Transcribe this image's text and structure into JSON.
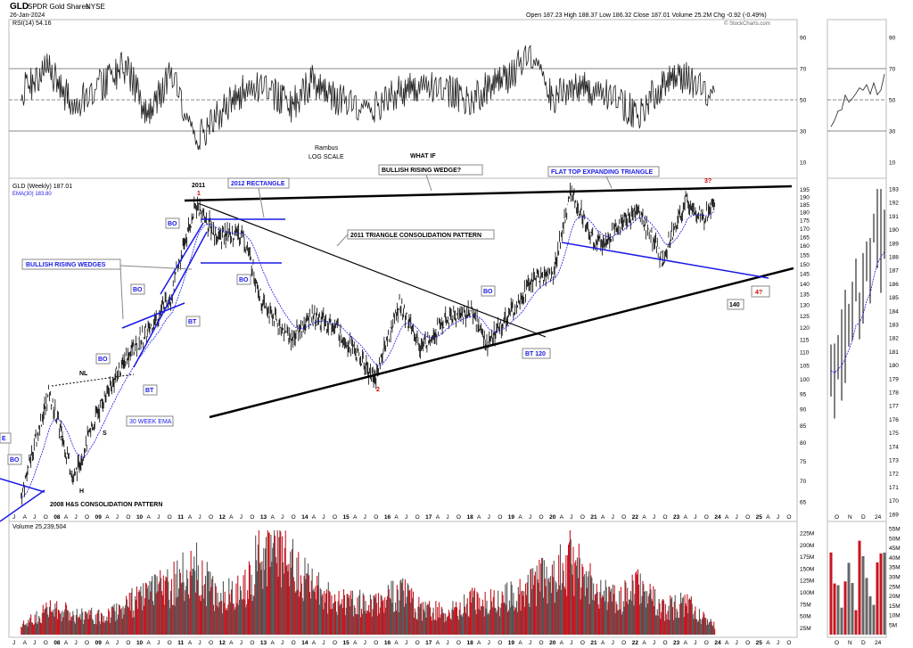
{
  "header": {
    "ticker": "GLD",
    "name": "SPDR Gold Shares",
    "exchange": "NYSE",
    "date": "26-Jan-2024",
    "ohlc": "Open 187.23  High 188.37  Low 186.32  Close 187.01  Volume 25.2M  Chg -0.92 (-0.49%)",
    "copyright": "© StockCharts.com"
  },
  "rsi": {
    "label": "RSI(14) 54.16",
    "ticks": [
      "90",
      "70",
      "50",
      "30",
      "10"
    ]
  },
  "price": {
    "label": "GLD (Weekly) 187.01",
    "ema_label": "EMA(30) 183.80",
    "ticks": [
      "195",
      "190",
      "185",
      "180",
      "175",
      "170",
      "165",
      "160",
      "155",
      "150",
      "145",
      "140",
      "135",
      "130",
      "125",
      "120",
      "115",
      "110",
      "105",
      "100",
      "95",
      "90",
      "85",
      "80",
      "75",
      "70",
      "65"
    ],
    "right_ticks": [
      "193",
      "192",
      "191",
      "190",
      "189",
      "188",
      "187",
      "186",
      "185",
      "184",
      "183",
      "182",
      "181",
      "180",
      "179",
      "178",
      "177",
      "176",
      "175",
      "174",
      "173",
      "172",
      "171",
      "170",
      "169"
    ]
  },
  "volume": {
    "label": "Volume 25,239,504",
    "ticks": [
      "225M",
      "200M",
      "175M",
      "150M",
      "125M",
      "100M",
      "75M",
      "50M",
      "25M"
    ],
    "right_ticks": [
      "55M",
      "50M",
      "45M",
      "40M",
      "35M",
      "30M",
      "25M",
      "20M",
      "15M",
      "10M",
      "5M"
    ]
  },
  "annotations": {
    "rambus": "Rambus",
    "log_scale": "LOG SCALE",
    "what_if": "WHAT IF",
    "bullish_rising_wedge": "BULLISH RISING WEDGE?",
    "flat_top": "FLAT TOP EXPANDING TRIANGLE",
    "rect2012": "2012 RECTANGLE",
    "triangle2011": "2011 TRIANGLE CONSOLIDATION PATTERN",
    "bullish_wedges": "BULLISH RISING WEDGES",
    "hs2008": "2008 H&S CONSOLIDATION PATTERN",
    "ema30": "30 WEEK EMA",
    "year2011": "2011",
    "p1": "1",
    "p2": "2",
    "p3": "3?",
    "p4": "4?",
    "target": "140",
    "bt120": "BT 120",
    "bo": "BO",
    "bt": "BT",
    "nl": "NL",
    "s": "S",
    "h": "H",
    "e": "E"
  },
  "x_axis": {
    "main": [
      "J",
      "A",
      "J",
      "O",
      "08",
      "A",
      "J",
      "O",
      "09",
      "A",
      "J",
      "O",
      "10",
      "A",
      "J",
      "O",
      "11",
      "A",
      "J",
      "O",
      "12",
      "A",
      "J",
      "O",
      "13",
      "A",
      "J",
      "O",
      "14",
      "A",
      "J",
      "O",
      "15",
      "A",
      "J",
      "O",
      "16",
      "A",
      "J",
      "O",
      "17",
      "A",
      "J",
      "O",
      "18",
      "A",
      "J",
      "O",
      "19",
      "A",
      "J",
      "O",
      "20",
      "A",
      "J",
      "O",
      "21",
      "A",
      "J",
      "O",
      "22",
      "A",
      "J",
      "O",
      "23",
      "A",
      "J",
      "O",
      "24",
      "A",
      "J",
      "O",
      "25",
      "A",
      "J",
      "O"
    ],
    "side": [
      "O",
      "N",
      "D",
      "24"
    ]
  },
  "chart_data": {
    "type": "line",
    "title": "GLD SPDR Gold Shares (Weekly)",
    "scale": "log",
    "ylim": [
      62,
      196
    ],
    "x_range": [
      "2007-04",
      "2025-12"
    ],
    "series": [
      {
        "name": "GLD",
        "x": [
          "2007-07",
          "2008-03",
          "2008-10",
          "2009-06",
          "2010-01",
          "2010-07",
          "2011-02",
          "2011-09",
          "2012-03",
          "2012-10",
          "2013-04",
          "2013-12",
          "2014-06",
          "2015-01",
          "2015-12",
          "2016-07",
          "2017-01",
          "2017-09",
          "2018-04",
          "2018-08",
          "2019-02",
          "2019-09",
          "2020-03",
          "2020-08",
          "2021-03",
          "2021-09",
          "2022-03",
          "2022-10",
          "2023-05",
          "2023-10",
          "2024-01"
        ],
        "values": [
          66,
          95,
          70,
          92,
          108,
          118,
          135,
          185,
          165,
          168,
          130,
          115,
          125,
          120,
          100,
          130,
          112,
          124,
          127,
          113,
          125,
          142,
          145,
          194,
          160,
          170,
          182,
          152,
          188,
          175,
          187
        ]
      }
    ],
    "rsi_values": [
      55,
      70,
      45,
      60,
      72,
      40,
      68,
      25,
      40,
      55,
      60,
      45,
      62,
      50,
      45,
      55,
      60,
      55,
      50,
      58,
      65,
      80,
      50,
      60,
      55,
      50,
      40,
      60,
      65,
      55,
      54
    ],
    "volume_values": [
      20,
      60,
      50,
      40,
      70,
      90,
      120,
      150,
      90,
      100,
      200,
      160,
      110,
      80,
      70,
      100,
      60,
      50,
      80,
      70,
      90,
      120,
      130,
      180,
      100,
      80,
      110,
      60,
      70,
      40,
      25
    ]
  }
}
